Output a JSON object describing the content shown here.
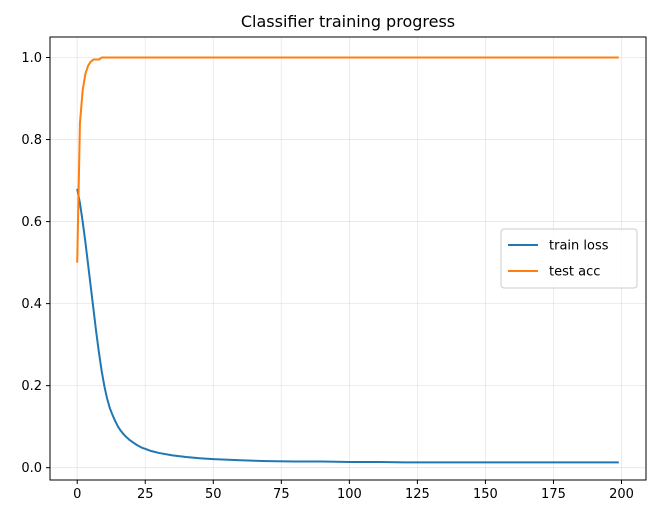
{
  "chart_data": {
    "type": "line",
    "title": "Classifier training progress",
    "xlabel": "",
    "ylabel": "",
    "xlim": [
      -10,
      209
    ],
    "ylim": [
      -0.03,
      1.05
    ],
    "xticks": [
      0,
      25,
      50,
      75,
      100,
      125,
      150,
      175,
      200
    ],
    "yticks": [
      0.0,
      0.2,
      0.4,
      0.6,
      0.8,
      1.0
    ],
    "xtick_labels": [
      "0",
      "25",
      "50",
      "75",
      "100",
      "125",
      "150",
      "175",
      "200"
    ],
    "ytick_labels": [
      "0.0",
      "0.2",
      "0.4",
      "0.6",
      "0.8",
      "1.0"
    ],
    "grid": true,
    "legend_position": "center-right",
    "series": [
      {
        "name": "train loss",
        "color": "#1f77b4",
        "points": [
          [
            0,
            0.68
          ],
          [
            1,
            0.645
          ],
          [
            2,
            0.6
          ],
          [
            3,
            0.55
          ],
          [
            4,
            0.495
          ],
          [
            5,
            0.44
          ],
          [
            6,
            0.385
          ],
          [
            7,
            0.33
          ],
          [
            8,
            0.28
          ],
          [
            9,
            0.235
          ],
          [
            10,
            0.198
          ],
          [
            11,
            0.168
          ],
          [
            12,
            0.145
          ],
          [
            13,
            0.128
          ],
          [
            14,
            0.113
          ],
          [
            15,
            0.1
          ],
          [
            16,
            0.09
          ],
          [
            17,
            0.082
          ],
          [
            18,
            0.075
          ],
          [
            19,
            0.069
          ],
          [
            20,
            0.064
          ],
          [
            22,
            0.055
          ],
          [
            24,
            0.048
          ],
          [
            25,
            0.046
          ],
          [
            27,
            0.041
          ],
          [
            30,
            0.036
          ],
          [
            35,
            0.03
          ],
          [
            40,
            0.026
          ],
          [
            45,
            0.023
          ],
          [
            50,
            0.021
          ],
          [
            60,
            0.018
          ],
          [
            70,
            0.016
          ],
          [
            80,
            0.015
          ],
          [
            90,
            0.015
          ],
          [
            100,
            0.014
          ],
          [
            110,
            0.014
          ],
          [
            120,
            0.013
          ],
          [
            130,
            0.013
          ],
          [
            140,
            0.013
          ],
          [
            150,
            0.013
          ],
          [
            160,
            0.013
          ],
          [
            170,
            0.013
          ],
          [
            180,
            0.013
          ],
          [
            190,
            0.013
          ],
          [
            199,
            0.013
          ]
        ]
      },
      {
        "name": "test acc",
        "color": "#ff7f0e",
        "points": [
          [
            0,
            0.5
          ],
          [
            1,
            0.84
          ],
          [
            2,
            0.92
          ],
          [
            3,
            0.96
          ],
          [
            4,
            0.98
          ],
          [
            5,
            0.99
          ],
          [
            6,
            0.995
          ],
          [
            7,
            0.995
          ],
          [
            8,
            0.995
          ],
          [
            9,
            1.0
          ],
          [
            10,
            1.0
          ],
          [
            20,
            1.0
          ],
          [
            50,
            1.0
          ],
          [
            100,
            1.0
          ],
          [
            150,
            1.0
          ],
          [
            199,
            1.0
          ]
        ]
      }
    ]
  }
}
